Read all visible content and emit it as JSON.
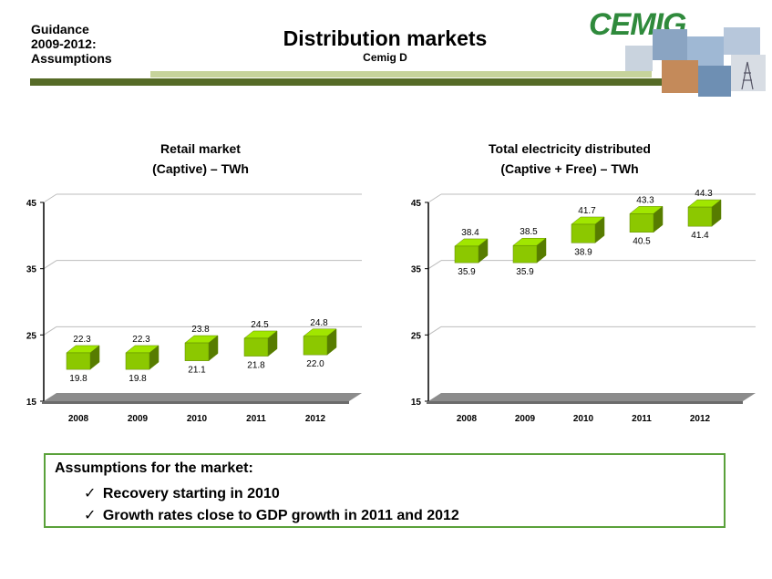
{
  "header": {
    "guidance": [
      "Guidance",
      "2009-2012:",
      "Assumptions"
    ],
    "title": "Distribution markets",
    "subtitle": "Cemig D",
    "logo": "CEMIG",
    "accent_dark": "#566b27",
    "accent_light": "#c6d39b"
  },
  "charts_headings": {
    "retail": [
      "Retail market",
      "(Captive) – TWh"
    ],
    "total": [
      "Total electricity distributed",
      "(Captive  + Free) – TWh"
    ]
  },
  "chart_data": [
    {
      "type": "bar",
      "categories": [
        "2008",
        "2009",
        "2010",
        "2011",
        "2012"
      ],
      "series": [
        {
          "values": [
            19.8,
            19.8,
            21.1,
            21.8,
            22.0
          ]
        },
        {
          "values": [
            22.3,
            22.3,
            23.8,
            24.5,
            24.8
          ]
        }
      ],
      "ylim": [
        15,
        45
      ],
      "yticks": [
        "15",
        "25",
        "35",
        "45"
      ],
      "grid": true,
      "bar_color": "#8cc800"
    },
    {
      "type": "bar",
      "categories": [
        "2008",
        "2009",
        "2010",
        "2011",
        "2012"
      ],
      "series": [
        {
          "values": [
            35.9,
            35.9,
            38.9,
            40.5,
            41.4
          ]
        },
        {
          "values": [
            38.4,
            38.5,
            41.7,
            43.3,
            44.3
          ]
        }
      ],
      "ylim": [
        15,
        45
      ],
      "yticks": [
        "15",
        "25",
        "35",
        "45"
      ],
      "grid": true,
      "bar_color": "#8cc800"
    }
  ],
  "assumptions": {
    "title": "Assumptions for the market:",
    "items": [
      "Recovery starting in 2010",
      "Growth rates close to GDP growth in 2011 and 2012"
    ],
    "check_icon": "✓",
    "border_color": "#5aa13a"
  }
}
